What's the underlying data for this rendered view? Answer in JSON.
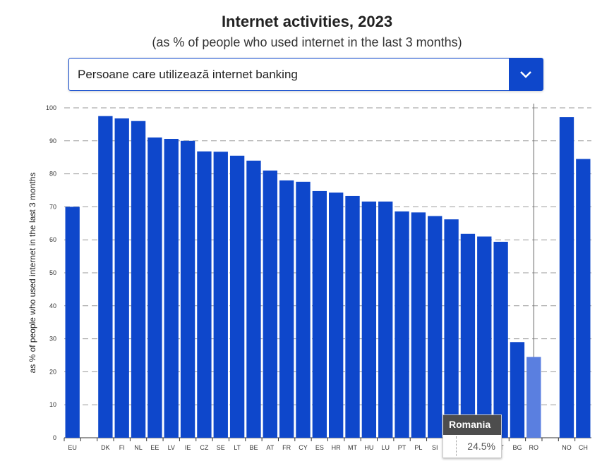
{
  "header": {
    "title": "Internet activities, 2023",
    "subtitle": "(as % of people who used internet in the last 3 months)"
  },
  "selector": {
    "value": "Persoane care utilizează internet banking",
    "icon": "chevron-down-icon"
  },
  "tooltip": {
    "country": "Romania",
    "value": "24.5%"
  },
  "chart_data": {
    "type": "bar",
    "ylabel": "as % of people who used internet in the last 3 months",
    "ylim": [
      0,
      100
    ],
    "yticks": [
      0,
      10,
      20,
      30,
      40,
      50,
      60,
      70,
      80,
      90,
      100
    ],
    "grid": true,
    "bar_color": "#0e47cb",
    "highlight_color": "#5a7fe0",
    "highlighted": "RO",
    "categories": [
      "EU",
      "",
      "DK",
      "FI",
      "NL",
      "EE",
      "LV",
      "IE",
      "CZ",
      "SE",
      "LT",
      "BE",
      "AT",
      "FR",
      "CY",
      "ES",
      "HR",
      "MT",
      "HU",
      "LU",
      "PT",
      "PL",
      "SI",
      "",
      "",
      "",
      "IT",
      "BG",
      "RO",
      "",
      "NO",
      "CH"
    ],
    "values": [
      70,
      null,
      97.5,
      96.8,
      96,
      91,
      90.6,
      90,
      86.8,
      86.7,
      85.5,
      84,
      81,
      78,
      77.6,
      74.8,
      74.3,
      73.3,
      71.6,
      71.6,
      68.6,
      68.3,
      67.2,
      66.2,
      61.8,
      61,
      59.4,
      29,
      24.5,
      null,
      97.2,
      84.5
    ]
  }
}
